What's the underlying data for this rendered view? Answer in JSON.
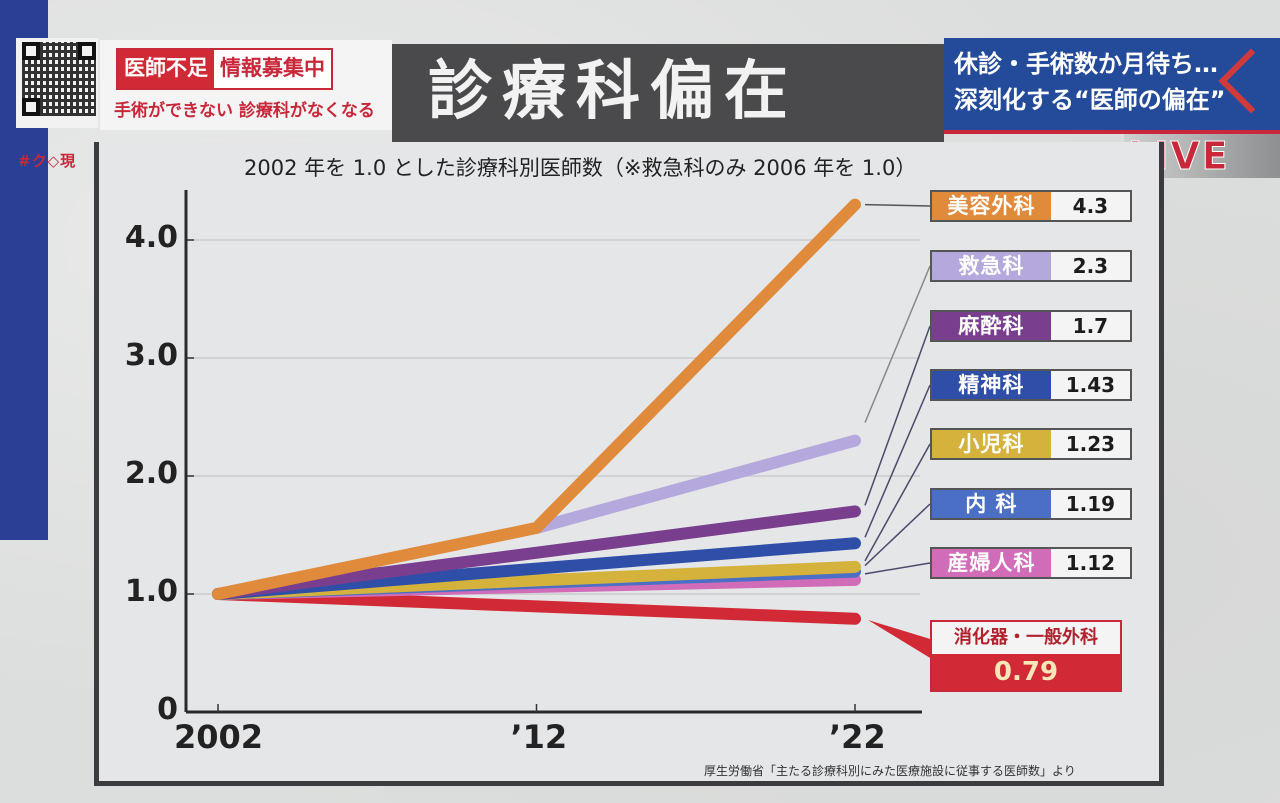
{
  "header": {
    "tag_left": "医師不足",
    "tag_right": "情報募集中",
    "tag_sub": "手術ができない 診療科がなくなる",
    "handle": "#ク◇現",
    "title": "診療科偏在",
    "news_line1": "休診・手術数か月待ち…",
    "news_line2": "深刻化する“医師の偏在”",
    "live": "LIVE"
  },
  "icons": {
    "qr": "qr-code-icon",
    "chevron": "chevron-right-icon"
  },
  "chart_data": {
    "type": "line",
    "title": "2002 年を 1.0 とした診療科別医師数（※救急科のみ 2006 年を 1.0）",
    "xlabel": "",
    "ylabel": "",
    "x": [
      2002,
      2012,
      2022
    ],
    "x_tick_labels": [
      "2002",
      "’12",
      "’22"
    ],
    "y_ticks": [
      0,
      1.0,
      2.0,
      3.0,
      4.0
    ],
    "y_tick_labels": [
      "0",
      "1.0",
      "2.0",
      "3.0",
      "4.0"
    ],
    "ylim": [
      0,
      4.6
    ],
    "grid": true,
    "legend": "right",
    "series": [
      {
        "name": "美容外科",
        "color": "#e08a3c",
        "points": [
          [
            2002,
            1.0
          ],
          [
            2012,
            1.56
          ],
          [
            2022,
            4.3
          ]
        ],
        "label": "4.3"
      },
      {
        "name": "救急科",
        "color": "#b4a8dc",
        "points": [
          [
            2012,
            1.56
          ],
          [
            2022,
            2.3
          ]
        ],
        "label": "2.3"
      },
      {
        "name": "麻酔科",
        "color": "#7a3e8e",
        "points": [
          [
            2002,
            1.0
          ],
          [
            2022,
            1.7
          ]
        ],
        "label": "1.7"
      },
      {
        "name": "精神科",
        "color": "#2f4ea8",
        "points": [
          [
            2002,
            1.0
          ],
          [
            2022,
            1.43
          ]
        ],
        "label": "1.43"
      },
      {
        "name": "小児科",
        "color": "#d4b23c",
        "points": [
          [
            2002,
            1.0
          ],
          [
            2022,
            1.23
          ]
        ],
        "label": "1.23"
      },
      {
        "name": "内 科",
        "color": "#4a6fc4",
        "points": [
          [
            2002,
            1.0
          ],
          [
            2022,
            1.19
          ]
        ],
        "label": "1.19"
      },
      {
        "name": "産婦人科",
        "color": "#d06cb8",
        "points": [
          [
            2002,
            1.0
          ],
          [
            2022,
            1.12
          ]
        ],
        "label": "1.12"
      },
      {
        "name": "消化器・一般外科",
        "color": "#d12a36",
        "points": [
          [
            2002,
            1.0
          ],
          [
            2022,
            0.79
          ]
        ],
        "label": "0.79"
      }
    ],
    "source": "厚生労働省「主たる診療科別にみた医療施設に従事する医師数」より"
  }
}
